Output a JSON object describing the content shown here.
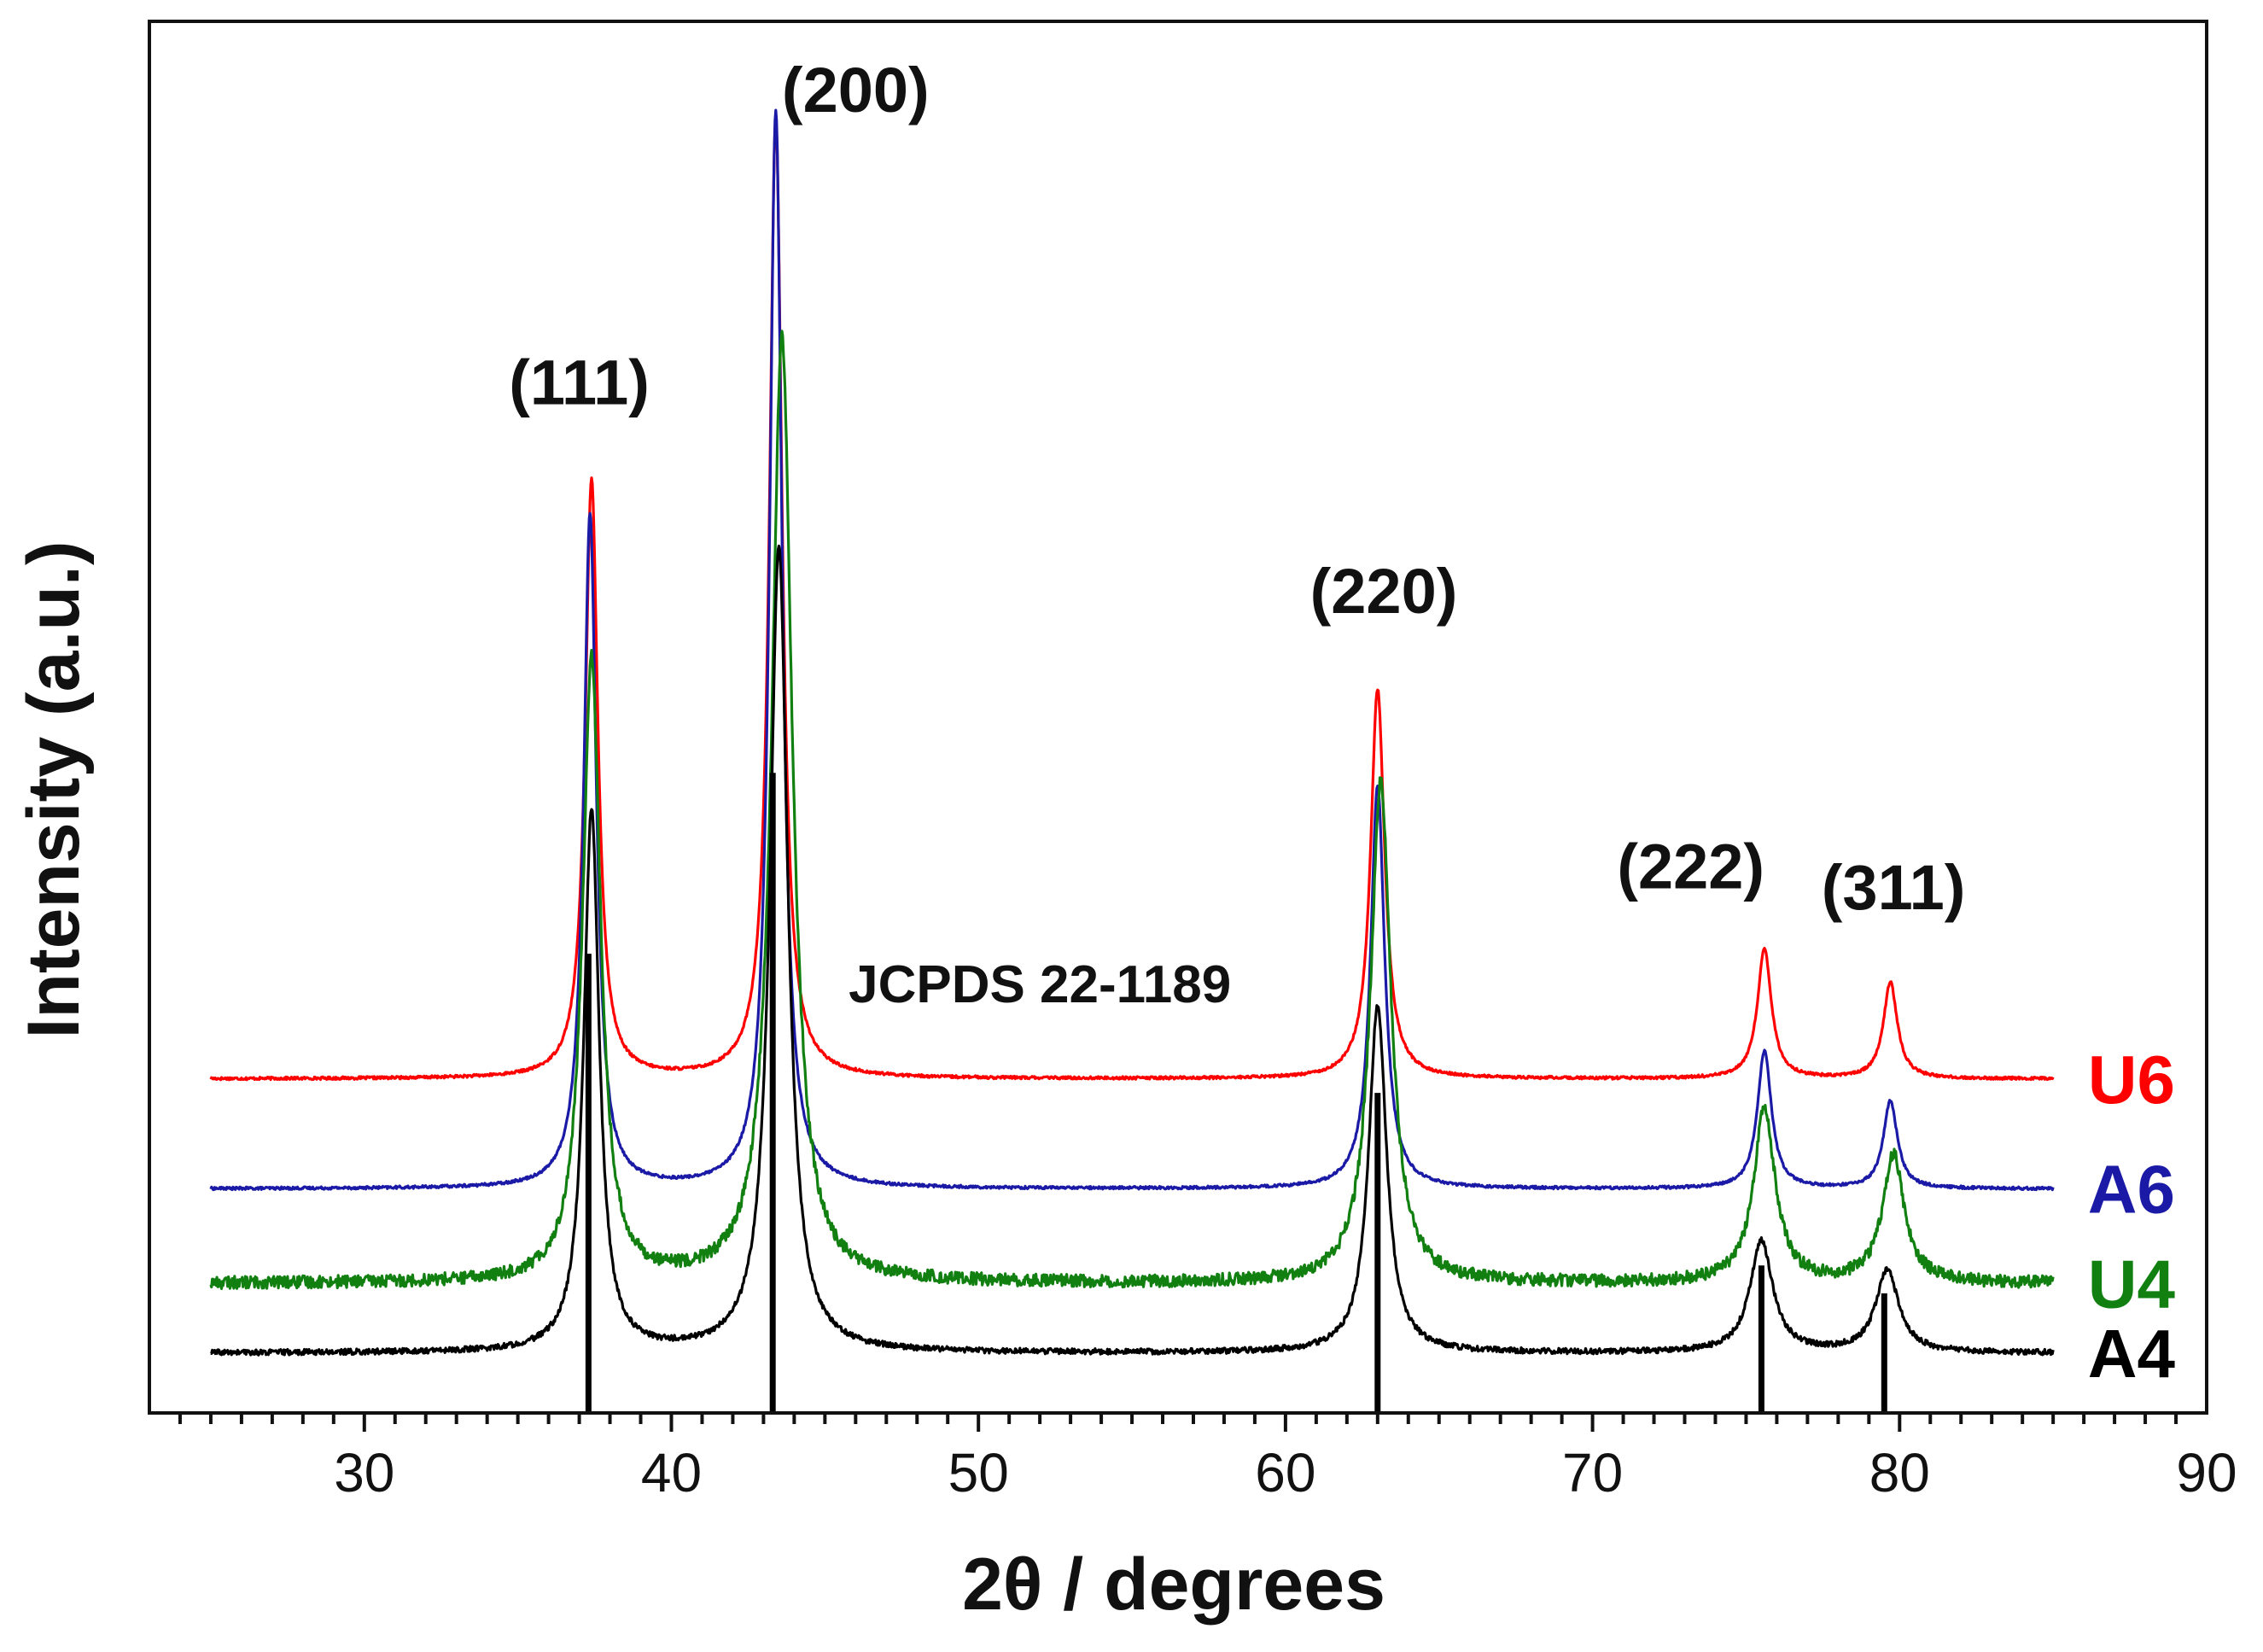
{
  "chart_data": {
    "type": "line",
    "title": "",
    "xlabel": "2θ / degrees",
    "ylabel": "Intensity (a.u.)",
    "xlim": [
      23,
      90
    ],
    "ylim": [
      0,
      100
    ],
    "xticks": [
      30,
      40,
      50,
      60,
      70,
      80,
      90
    ],
    "x_minor_step": 1,
    "yticks": [],
    "grid": false,
    "series": [
      {
        "name": "U6",
        "color": "#ff0000",
        "baseline": 24.0,
        "noise": 0.1,
        "peaks": [
          {
            "x": 37.4,
            "height": 43.0,
            "width": 0.5
          },
          {
            "x": 43.4,
            "height": 69.0,
            "width": 0.5
          },
          {
            "x": 63.0,
            "height": 28.0,
            "width": 0.55
          },
          {
            "x": 75.6,
            "height": 9.3,
            "width": 0.55
          },
          {
            "x": 79.7,
            "height": 6.9,
            "width": 0.55
          }
        ]
      },
      {
        "name": "A6",
        "color": "#1a1aa6",
        "baseline": 16.1,
        "noise": 0.1,
        "peaks": [
          {
            "x": 37.35,
            "height": 48.5,
            "width": 0.5
          },
          {
            "x": 43.4,
            "height": 77.5,
            "width": 0.5
          },
          {
            "x": 63.0,
            "height": 29.0,
            "width": 0.55
          },
          {
            "x": 75.6,
            "height": 9.9,
            "width": 0.55
          },
          {
            "x": 79.7,
            "height": 6.3,
            "width": 0.55
          }
        ]
      },
      {
        "name": "U4",
        "color": "#118011",
        "baseline": 9.3,
        "noise": 0.45,
        "peaks": [
          {
            "x": 37.4,
            "height": 45.0,
            "width": 0.7
          },
          {
            "x": 43.6,
            "height": 68.0,
            "width": 0.8
          },
          {
            "x": 63.1,
            "height": 36.0,
            "width": 0.8
          },
          {
            "x": 75.6,
            "height": 12.5,
            "width": 0.85
          },
          {
            "x": 79.8,
            "height": 9.2,
            "width": 0.85
          }
        ]
      },
      {
        "name": "A4",
        "color": "#000000",
        "baseline": 4.3,
        "noise": 0.2,
        "peaks": [
          {
            "x": 37.4,
            "height": 39.0,
            "width": 0.6
          },
          {
            "x": 43.5,
            "height": 58.0,
            "width": 0.7
          },
          {
            "x": 63.0,
            "height": 25.0,
            "width": 0.7
          },
          {
            "x": 75.5,
            "height": 8.0,
            "width": 0.9
          },
          {
            "x": 79.6,
            "height": 5.9,
            "width": 0.9
          }
        ]
      }
    ],
    "reference": {
      "name": "JCPDS 22-1189",
      "color": "#000000",
      "sticks": [
        {
          "x": 37.3,
          "top": 33.0
        },
        {
          "x": 43.3,
          "top": 46.0
        },
        {
          "x": 63.0,
          "top": 23.0
        },
        {
          "x": 75.5,
          "top": 10.6
        },
        {
          "x": 79.5,
          "top": 8.6
        }
      ]
    },
    "annotations": [
      {
        "text": "(111)",
        "x": 37.0,
        "y": 72.5
      },
      {
        "text": "(200)",
        "x": 46.0,
        "y": 93.5
      },
      {
        "text": "(220)",
        "x": 63.2,
        "y": 57.5
      },
      {
        "text": "(222)",
        "x": 73.2,
        "y": 37.7
      },
      {
        "text": "(311)",
        "x": 79.8,
        "y": 36.2
      },
      {
        "text": "JCPDS 22-1189",
        "x": 52.0,
        "y": 29.5
      }
    ]
  }
}
